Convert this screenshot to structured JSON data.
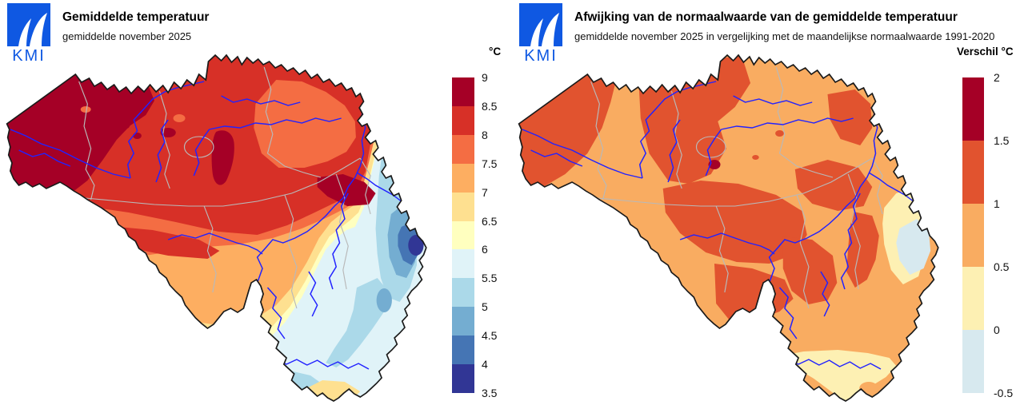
{
  "left_panel": {
    "logo_text": "KMI",
    "title": "Gemiddelde temperatuur",
    "subtitle": "gemiddelde november 2025",
    "legend": {
      "title": "°C",
      "labels": [
        "9",
        "8.5",
        "8",
        "7.5",
        "7",
        "6.5",
        "6",
        "5.5",
        "5",
        "4.5",
        "4",
        "3.5"
      ],
      "colors": [
        "#a50026",
        "#d73027",
        "#f46d43",
        "#fdae61",
        "#fee090",
        "#ffffbf",
        "#e0f3f8",
        "#abd9e9",
        "#74add1",
        "#4575b4",
        "#313695"
      ]
    }
  },
  "right_panel": {
    "logo_text": "KMI",
    "title": "Afwijking van de normaalwaarde van de gemiddelde temperatuur",
    "subtitle": "gemiddelde november 2025 in vergelijking met de maandelijkse normaalwaarde 1991-2020",
    "legend": {
      "title": "Verschil °C",
      "labels": [
        "2",
        "1.5",
        "1",
        "0.5",
        "0",
        "-0.5"
      ],
      "colors": [
        "#a50026",
        "#e1532f",
        "#f9ac61",
        "#fdf0b3",
        "#d7e9ef"
      ]
    }
  },
  "palettes": {
    "temp": [
      "#a50026",
      "#d73027",
      "#f46d43",
      "#fdae61",
      "#fee090",
      "#ffffbf",
      "#e0f3f8",
      "#abd9e9",
      "#74add1",
      "#4575b4",
      "#313695"
    ],
    "anom": [
      "#a50026",
      "#e1532f",
      "#f9ac61",
      "#fdf0b3",
      "#d7e9ef"
    ]
  },
  "style": {
    "logo_blue": "#0f58e2",
    "outline": "#1a1a1a",
    "river": "#2222ff",
    "boundary": "#b9b9b9",
    "background": "#ffffff"
  }
}
